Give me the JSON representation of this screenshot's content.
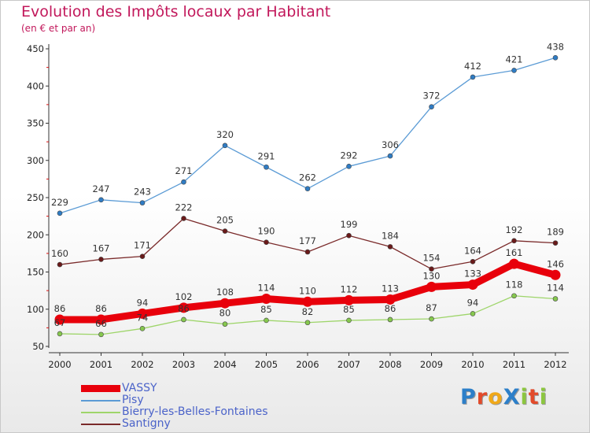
{
  "header": {
    "title": "Evolution des Impôts locaux par Habitant",
    "subtitle": "(en € et par an)"
  },
  "logo": {
    "text": "ProXiti",
    "letter_colors": [
      "#2c7fc9",
      "#e24a2a",
      "#f0a818",
      "#2c7fc9",
      "#8cc63f",
      "#e24a2a",
      "#8cc63f"
    ]
  },
  "chart_data": {
    "type": "line",
    "x": [
      "2000",
      "2001",
      "2002",
      "2003",
      "2004",
      "2005",
      "2006",
      "2007",
      "2008",
      "2009",
      "2010",
      "2011",
      "2012"
    ],
    "ylim": [
      50,
      450
    ],
    "yticks": [
      50,
      100,
      150,
      200,
      250,
      300,
      350,
      400,
      450
    ],
    "grid": false,
    "legend_position": "bottom-left",
    "series": [
      {
        "name": "VASSY",
        "color": "#e8000b",
        "marker": "#e8000b",
        "thick": true,
        "values": [
          86,
          86,
          94,
          102,
          108,
          114,
          110,
          112,
          113,
          130,
          133,
          161,
          146
        ]
      },
      {
        "name": "Pisy",
        "color": "#5b9bd5",
        "marker": "#2f7cc4",
        "thick": false,
        "values": [
          229,
          247,
          243,
          271,
          320,
          291,
          262,
          292,
          306,
          372,
          412,
          421,
          438
        ]
      },
      {
        "name": "Bierry-les-Belles-Fontaines",
        "color": "#9ed56a",
        "marker": "#86c84e",
        "thick": false,
        "values": [
          67,
          66,
          74,
          86,
          80,
          85,
          82,
          85,
          86,
          87,
          94,
          118,
          114
        ]
      },
      {
        "name": "Santigny",
        "color": "#7a2a2a",
        "marker": "#6a1a1a",
        "thick": false,
        "values": [
          160,
          167,
          171,
          222,
          205,
          190,
          177,
          199,
          184,
          154,
          164,
          192,
          189
        ]
      }
    ]
  }
}
